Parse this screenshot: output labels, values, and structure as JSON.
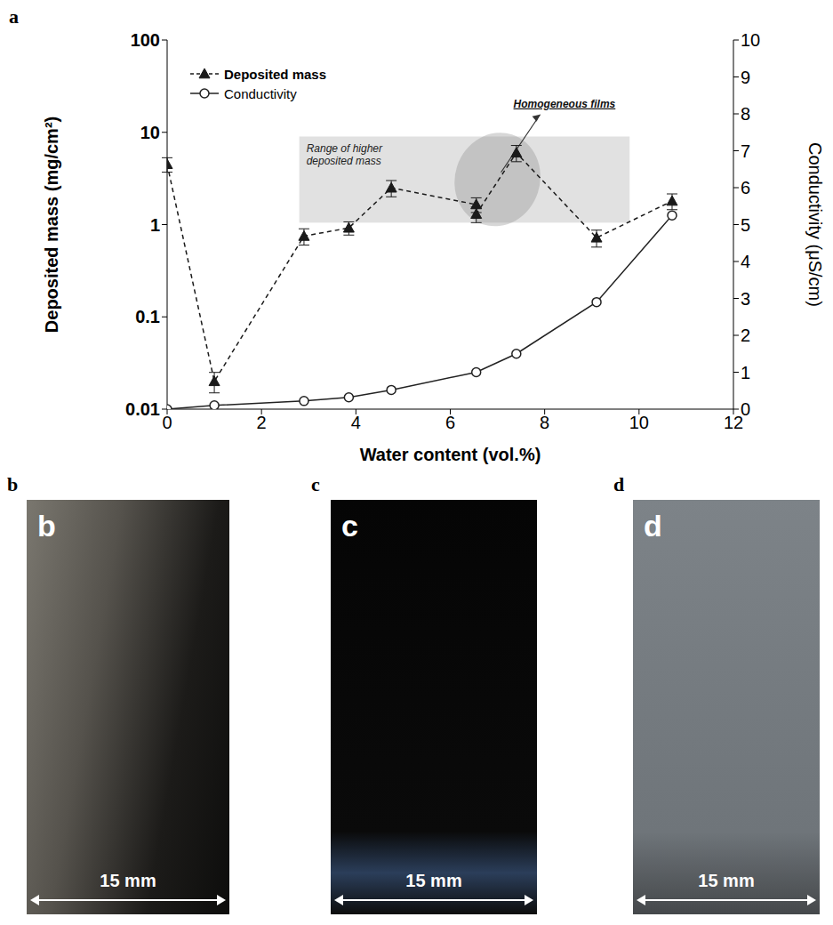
{
  "chart_data": {
    "type": "scatter",
    "panel_label": "a",
    "x_label": "Water content (vol.%)",
    "y_label": "Deposited mass (mg/cm²)",
    "y2_label": "Conductivity (μS/cm)",
    "xlim": [
      0,
      12
    ],
    "xticks": [
      0,
      2,
      4,
      6,
      8,
      10,
      12
    ],
    "ylim": [
      0.01,
      100
    ],
    "yticks": [
      0.01,
      0.1,
      1,
      10,
      100
    ],
    "y2lim": [
      0,
      10
    ],
    "y2ticks": [
      0,
      1,
      2,
      3,
      4,
      5,
      6,
      7,
      8,
      9,
      10
    ],
    "log": "y",
    "grid": false,
    "legend": "upper left",
    "series": [
      {
        "name": "Deposited mass",
        "color": "#1a1a1a",
        "marker": "triangle",
        "line_style": "dashed",
        "x": [
          0,
          1,
          2.9,
          3.85,
          4.75,
          6.55,
          6.55,
          7.4,
          9.1,
          10.7
        ],
        "values": [
          4.5,
          0.02,
          0.75,
          0.92,
          2.5,
          1.65,
          1.3,
          6.0,
          0.72,
          1.8
        ],
        "errors": [
          0.8,
          0.005,
          0.15,
          0.15,
          0.5,
          0.3,
          0.25,
          1.2,
          0.15,
          0.35
        ]
      },
      {
        "name": "Conductivity",
        "color": "#222222",
        "marker": "circle",
        "line_style": "solid",
        "axis": "y2",
        "x": [
          0,
          1,
          2.9,
          3.85,
          4.75,
          6.55,
          7.4,
          9.1,
          10.7
        ],
        "values": [
          0,
          0.1,
          0.22,
          0.32,
          0.52,
          1.0,
          1.5,
          2.9,
          5.25
        ]
      }
    ],
    "shaded_region": {
      "text": "Range of higher deposited mass",
      "x": [
        2.8,
        9.8
      ],
      "y": [
        1.05,
        9
      ]
    },
    "highlight": {
      "text": "Homogeneous films",
      "x": [
        6.1,
        7.9
      ],
      "y": [
        0.95,
        10
      ]
    }
  },
  "photos": [
    {
      "label": "b",
      "scale_bar": "15 mm"
    },
    {
      "label": "c",
      "scale_bar": "15 mm"
    },
    {
      "label": "d",
      "scale_bar": "15 mm"
    }
  ]
}
